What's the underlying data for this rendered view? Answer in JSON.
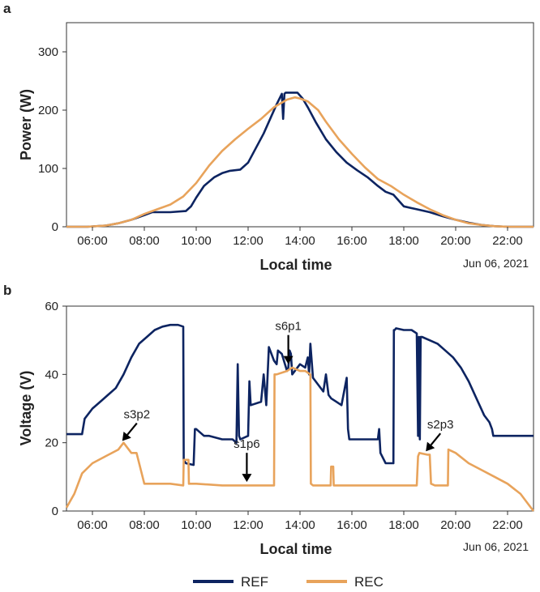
{
  "colors": {
    "ref": "#0d2461",
    "rec": "#e8a35b",
    "axis": "#333333",
    "grid": "#ffffff"
  },
  "legend": [
    {
      "key": "ref",
      "label": "REF"
    },
    {
      "key": "rec",
      "label": "REC"
    }
  ],
  "chart_data": [
    {
      "panel": "a",
      "type": "line",
      "xlabel": "Local time",
      "ylabel": "Power (W)",
      "date_label": "Jun 06, 2021",
      "xlim": [
        5,
        23
      ],
      "ylim": [
        0,
        350
      ],
      "xticks": [
        6,
        8,
        10,
        12,
        14,
        16,
        18,
        20,
        22
      ],
      "xtick_labels": [
        "06:00",
        "08:00",
        "10:00",
        "12:00",
        "14:00",
        "16:00",
        "18:00",
        "20:00",
        "22:00"
      ],
      "yticks": [
        0,
        100,
        200,
        300
      ],
      "ytick_labels": [
        "0",
        "100",
        "200",
        "300"
      ],
      "series": [
        {
          "key": "ref",
          "name": "REF",
          "x": [
            5,
            5.8,
            6.5,
            7,
            7.5,
            8,
            8.3,
            9,
            9.6,
            9.8,
            10,
            10.3,
            10.7,
            11,
            11.3,
            11.7,
            12,
            12.3,
            12.6,
            12.9,
            13.1,
            13.3,
            13.35,
            13.4,
            13.45,
            13.6,
            13.9,
            14.1,
            14.3,
            14.6,
            15,
            15.4,
            15.8,
            16.2,
            16.6,
            17,
            17.3,
            17.6,
            18,
            18.5,
            19,
            19.5,
            20,
            20.5,
            21,
            21.5,
            22,
            23
          ],
          "y": [
            0,
            0,
            2,
            6,
            12,
            20,
            25,
            25,
            27,
            35,
            50,
            70,
            85,
            92,
            96,
            98,
            110,
            135,
            160,
            190,
            210,
            228,
            185,
            228,
            230,
            230,
            230,
            220,
            205,
            180,
            150,
            128,
            110,
            97,
            85,
            70,
            60,
            55,
            35,
            30,
            25,
            18,
            12,
            7,
            3,
            1,
            0,
            0
          ]
        },
        {
          "key": "rec",
          "name": "REC",
          "x": [
            5,
            5.8,
            6.5,
            7,
            7.5,
            8,
            8.5,
            9,
            9.5,
            10,
            10.5,
            11,
            11.5,
            12,
            12.5,
            13,
            13.5,
            13.8,
            14,
            14.3,
            14.7,
            15,
            15.5,
            16,
            16.5,
            17,
            17.5,
            18,
            18.5,
            19,
            19.5,
            20,
            20.5,
            21,
            21.5,
            22,
            23
          ],
          "y": [
            0,
            0,
            2,
            6,
            12,
            22,
            30,
            38,
            52,
            75,
            105,
            130,
            150,
            168,
            185,
            205,
            218,
            222,
            220,
            215,
            200,
            180,
            150,
            125,
            102,
            82,
            70,
            55,
            42,
            30,
            20,
            12,
            6,
            3,
            1,
            0,
            0
          ]
        }
      ],
      "annotations": []
    },
    {
      "panel": "b",
      "type": "line",
      "xlabel": "Local time",
      "ylabel": "Voltage (V)",
      "date_label": "Jun 06, 2021",
      "xlim": [
        5,
        23
      ],
      "ylim": [
        0,
        60
      ],
      "xticks": [
        6,
        8,
        10,
        12,
        14,
        16,
        18,
        20,
        22
      ],
      "xtick_labels": [
        "06:00",
        "08:00",
        "10:00",
        "12:00",
        "14:00",
        "16:00",
        "18:00",
        "20:00",
        "22:00"
      ],
      "yticks": [
        0,
        20,
        40,
        60
      ],
      "ytick_labels": [
        "0",
        "20",
        "40",
        "60"
      ],
      "series": [
        {
          "key": "ref",
          "name": "REF",
          "x": [
            5,
            5.6,
            5.7,
            6,
            6.3,
            6.6,
            6.9,
            7.2,
            7.5,
            7.8,
            8.1,
            8.4,
            8.7,
            9,
            9.3,
            9.5,
            9.52,
            9.6,
            9.9,
            9.95,
            10,
            10.3,
            10.5,
            11,
            11.4,
            11.55,
            11.6,
            11.65,
            11.7,
            12,
            12.05,
            12.1,
            12.5,
            12.6,
            12.7,
            12.8,
            13,
            13.1,
            13.15,
            13.3,
            13.5,
            13.55,
            13.6,
            13.65,
            13.7,
            14,
            14.2,
            14.3,
            14.35,
            14.4,
            14.5,
            14.7,
            14.9,
            15,
            15.1,
            15.2,
            15.4,
            15.6,
            15.8,
            15.85,
            15.9,
            16,
            16.5,
            17,
            17.05,
            17.1,
            17.3,
            17.5,
            17.6,
            17.62,
            17.65,
            17.7,
            18,
            18.3,
            18.5,
            18.55,
            18.58,
            18.62,
            18.65,
            18.7,
            19,
            19.3,
            19.6,
            19.9,
            20.2,
            20.5,
            20.8,
            21.1,
            21.3,
            21.4,
            21.45,
            21.5,
            22,
            22.5,
            23
          ],
          "y": [
            22.5,
            22.5,
            27,
            30,
            32,
            34,
            36,
            40,
            45,
            49,
            51,
            53,
            54,
            54.5,
            54.5,
            54,
            15,
            14,
            13.5,
            24,
            24,
            22,
            22,
            21,
            21,
            20,
            43,
            22,
            21,
            22,
            38,
            31,
            32,
            40,
            31,
            48,
            44,
            43,
            47,
            46,
            41,
            42,
            47,
            46,
            40,
            43,
            42,
            45,
            40,
            49,
            39,
            37,
            35,
            40,
            34,
            33,
            32,
            31,
            39,
            24,
            21,
            21,
            21,
            21,
            24,
            17,
            14,
            14,
            14,
            53,
            53,
            53.5,
            53,
            53,
            52,
            22,
            51,
            21,
            51,
            51,
            50,
            49,
            47,
            45,
            42,
            38,
            33,
            28,
            26,
            24,
            22,
            22,
            22,
            22,
            22
          ]
        },
        {
          "key": "rec",
          "name": "REC",
          "x": [
            5,
            5.3,
            5.5,
            5.6,
            6,
            6.5,
            7,
            7.2,
            7.4,
            7.5,
            7.7,
            8,
            8.5,
            9,
            9.5,
            9.52,
            9.7,
            9.72,
            9.8,
            10,
            11,
            12,
            12.5,
            13,
            13.02,
            13.1,
            13.5,
            13.7,
            14,
            14.2,
            14.4,
            14.42,
            14.5,
            15,
            15.18,
            15.2,
            15.28,
            15.3,
            16,
            17,
            18,
            18.5,
            18.55,
            18.6,
            18.9,
            19,
            19.05,
            19.2,
            19.5,
            19.7,
            19.72,
            20,
            20.5,
            21,
            21.5,
            22,
            22.5,
            22.8,
            23
          ],
          "y": [
            1,
            5,
            9,
            11,
            14,
            16,
            18,
            20,
            18,
            17,
            17,
            8,
            8,
            8,
            7.5,
            15,
            15,
            8,
            8,
            8,
            7.5,
            7.5,
            7.5,
            7.5,
            40,
            40,
            41,
            42,
            41,
            41,
            40,
            8,
            7.5,
            7.5,
            7.5,
            13,
            13,
            7.5,
            7.5,
            7.5,
            7.5,
            7.5,
            16,
            17,
            16.5,
            16.5,
            8,
            7.5,
            7.5,
            7.5,
            18,
            17,
            14,
            12,
            10,
            8,
            5,
            2,
            0
          ]
        }
      ],
      "annotations": [
        {
          "label": "s3p2",
          "x": 7.15,
          "y": 20.5
        },
        {
          "label": "s1p6",
          "x": 11.95,
          "y": 8.5
        },
        {
          "label": "s6p1",
          "x": 13.55,
          "y": 43
        },
        {
          "label": "s2p3",
          "x": 18.85,
          "y": 17.5
        }
      ]
    }
  ]
}
